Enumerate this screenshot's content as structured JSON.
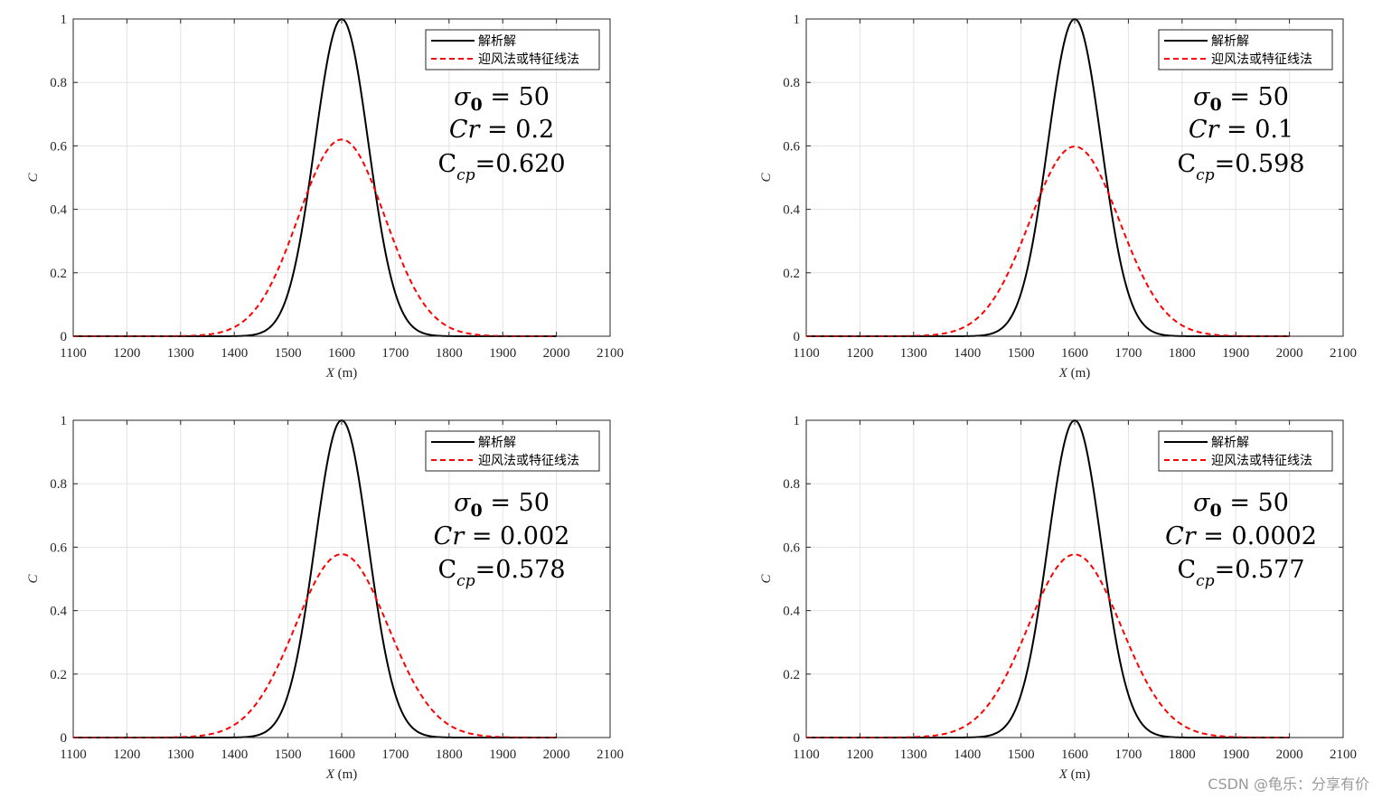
{
  "chart_data": [
    {
      "type": "line",
      "xlabel": "X (m)",
      "ylabel": "C",
      "xlim": [
        1100,
        2100
      ],
      "ylim": [
        0,
        1
      ],
      "xticks": [
        "1100",
        "1200",
        "1300",
        "1400",
        "1500",
        "1600",
        "1700",
        "1800",
        "1900",
        "2000",
        "2100"
      ],
      "yticks": [
        "0",
        "0.2",
        "0.4",
        "0.6",
        "0.8",
        "1"
      ],
      "grid": true,
      "legend": {
        "position": "top-right",
        "entries": [
          "解析解",
          "迎风法或特征线法"
        ]
      },
      "series": [
        {
          "name": "解析解",
          "color": "#000000",
          "style": "solid",
          "peak_x": 1600,
          "peak": 1.0,
          "sigma": 50,
          "x_range": [
            1100,
            2000
          ]
        },
        {
          "name": "迎风法或特征线法",
          "color": "#ff0000",
          "style": "dashed",
          "peak_x": 1600,
          "peak": 0.62,
          "sigma": 80.6,
          "x_range": [
            1100,
            2000
          ]
        }
      ],
      "annotations": {
        "sigma": "σ",
        "sigma_sub": "0",
        "sigma_val": " = 50",
        "cr": "Cr",
        "cr_val": " = 0.2",
        "ccp": "C",
        "ccp_sub": "cp",
        "ccp_val": "=0.620"
      }
    },
    {
      "type": "line",
      "xlabel": "X (m)",
      "ylabel": "C",
      "xlim": [
        1100,
        2100
      ],
      "ylim": [
        0,
        1
      ],
      "xticks": [
        "1100",
        "1200",
        "1300",
        "1400",
        "1500",
        "1600",
        "1700",
        "1800",
        "1900",
        "2000",
        "2100"
      ],
      "yticks": [
        "0",
        "0.2",
        "0.4",
        "0.6",
        "0.8",
        "1"
      ],
      "grid": true,
      "legend": {
        "position": "top-right",
        "entries": [
          "解析解",
          "迎风法或特征线法"
        ]
      },
      "series": [
        {
          "name": "解析解",
          "color": "#000000",
          "style": "solid",
          "peak_x": 1600,
          "peak": 1.0,
          "sigma": 50,
          "x_range": [
            1100,
            2000
          ]
        },
        {
          "name": "迎风法或特征线法",
          "color": "#ff0000",
          "style": "dashed",
          "peak_x": 1600,
          "peak": 0.598,
          "sigma": 83.6,
          "x_range": [
            1100,
            2000
          ]
        }
      ],
      "annotations": {
        "sigma": "σ",
        "sigma_sub": "0",
        "sigma_val": " = 50",
        "cr": "Cr",
        "cr_val": " = 0.1",
        "ccp": "C",
        "ccp_sub": "cp",
        "ccp_val": "=0.598"
      }
    },
    {
      "type": "line",
      "xlabel": "X (m)",
      "ylabel": "C",
      "xlim": [
        1100,
        2100
      ],
      "ylim": [
        0,
        1
      ],
      "xticks": [
        "1100",
        "1200",
        "1300",
        "1400",
        "1500",
        "1600",
        "1700",
        "1800",
        "1900",
        "2000",
        "2100"
      ],
      "yticks": [
        "0",
        "0.2",
        "0.4",
        "0.6",
        "0.8",
        "1"
      ],
      "grid": true,
      "legend": {
        "position": "top-right",
        "entries": [
          "解析解",
          "迎风法或特征线法"
        ]
      },
      "series": [
        {
          "name": "解析解",
          "color": "#000000",
          "style": "solid",
          "peak_x": 1600,
          "peak": 1.0,
          "sigma": 50,
          "x_range": [
            1100,
            2000
          ]
        },
        {
          "name": "迎风法或特征线法",
          "color": "#ff0000",
          "style": "dashed",
          "peak_x": 1600,
          "peak": 0.578,
          "sigma": 86.5,
          "x_range": [
            1100,
            2000
          ]
        }
      ],
      "annotations": {
        "sigma": "σ",
        "sigma_sub": "0",
        "sigma_val": " = 50",
        "cr": "Cr",
        "cr_val": " = 0.002",
        "ccp": "C",
        "ccp_sub": "cp",
        "ccp_val": "=0.578"
      }
    },
    {
      "type": "line",
      "xlabel": "X (m)",
      "ylabel": "C",
      "xlim": [
        1100,
        2100
      ],
      "ylim": [
        0,
        1
      ],
      "xticks": [
        "1100",
        "1200",
        "1300",
        "1400",
        "1500",
        "1600",
        "1700",
        "1800",
        "1900",
        "2000",
        "2100"
      ],
      "yticks": [
        "0",
        "0.2",
        "0.4",
        "0.6",
        "0.8",
        "1"
      ],
      "grid": true,
      "legend": {
        "position": "top-right",
        "entries": [
          "解析解",
          "迎风法或特征线法"
        ]
      },
      "series": [
        {
          "name": "解析解",
          "color": "#000000",
          "style": "solid",
          "peak_x": 1600,
          "peak": 1.0,
          "sigma": 50,
          "x_range": [
            1100,
            2000
          ]
        },
        {
          "name": "迎风法或特征线法",
          "color": "#ff0000",
          "style": "dashed",
          "peak_x": 1600,
          "peak": 0.577,
          "sigma": 86.7,
          "x_range": [
            1100,
            2000
          ]
        }
      ],
      "annotations": {
        "sigma": "σ",
        "sigma_sub": "0",
        "sigma_val": " = 50",
        "cr": "Cr",
        "cr_val": " = 0.0002",
        "ccp": "C",
        "ccp_sub": "cp",
        "ccp_val": "=0.577"
      }
    }
  ],
  "watermark": "CSDN @龟乐：分享有价"
}
